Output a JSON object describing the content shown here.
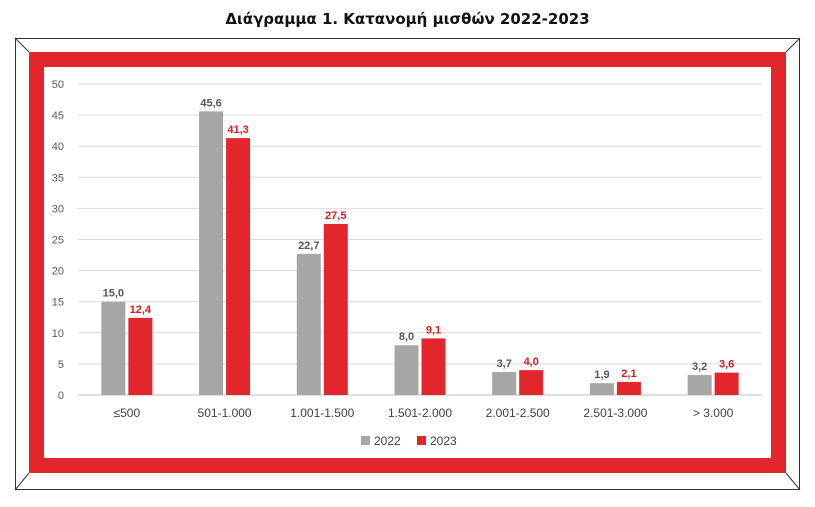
{
  "title": "Διάγραμμα 1. Κατανομή μισθών 2022-2023",
  "colors": {
    "series_2022": "#a6a6a6",
    "series_2023": "#e3262c",
    "frame": "#e3262c",
    "label_2022": "#555555",
    "label_2023": "#d7191f"
  },
  "chart_data": {
    "type": "bar",
    "title": "Διάγραμμα 1. Κατανομή μισθών 2022-2023",
    "categories": [
      "≤500",
      "501-1.000",
      "1.001-1.500",
      "1.501-2.000",
      "2.001-2.500",
      "2.501-3.000",
      "> 3.000"
    ],
    "series": [
      {
        "name": "2022",
        "values": [
          15.0,
          45.6,
          22.7,
          8.0,
          3.7,
          1.9,
          3.2
        ],
        "labels": [
          "15,0",
          "45,6",
          "22,7",
          "8,0",
          "3,7",
          "1,9",
          "3,2"
        ]
      },
      {
        "name": "2023",
        "values": [
          12.4,
          41.3,
          27.5,
          9.1,
          4.0,
          2.1,
          3.6
        ],
        "labels": [
          "12,4",
          "41,3",
          "27,5",
          "9,1",
          "4,0",
          "2,1",
          "3,6"
        ]
      }
    ],
    "ylim": [
      0,
      50
    ],
    "yticks": [
      0,
      5,
      10,
      15,
      20,
      25,
      30,
      35,
      40,
      45,
      50
    ],
    "grid": true,
    "legend": "bottom",
    "xlabel": "",
    "ylabel": ""
  }
}
